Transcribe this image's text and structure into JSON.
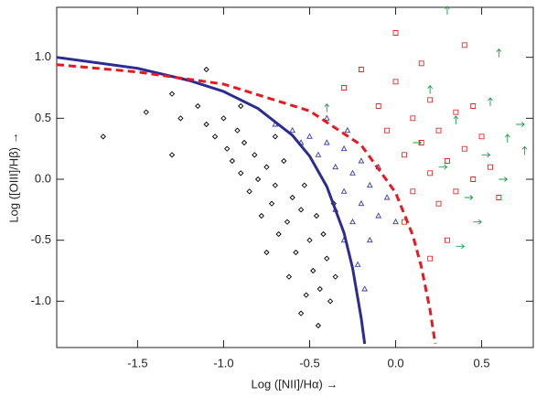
{
  "chart_data": {
    "type": "scatter",
    "x_label": "Log ([NII]/Hα) →",
    "y_label": "Log ([OIII]/Hβ) →",
    "xlim": [
      -1.97,
      0.8
    ],
    "ylim": [
      -1.38,
      1.41
    ],
    "xticks": [
      -1.5,
      {
        "value": -1,
        "label": "-1.0"
      },
      -0.5,
      {
        "value": 0,
        "label": "0.0"
      },
      0.5
    ],
    "yticks": [
      {
        "value": -1,
        "label": "-1.0"
      },
      -0.5,
      {
        "value": 0,
        "label": "0.0"
      },
      0.5,
      {
        "value": 1,
        "label": "1.0"
      }
    ],
    "series": [
      {
        "marker": "diamond",
        "color": "#000000",
        "x": [
          -1.7,
          -1.45,
          -1.3,
          -1.25,
          -1.15,
          -1.1,
          -1.05,
          -1.0,
          -0.98,
          -0.95,
          -0.92,
          -0.9,
          -0.88,
          -0.85,
          -0.82,
          -0.8,
          -0.78,
          -0.75,
          -0.72,
          -0.7,
          -0.68,
          -0.65,
          -0.63,
          -0.6,
          -0.58,
          -0.55,
          -0.53,
          -0.5,
          -0.48,
          -0.46,
          -0.44,
          -0.42,
          -0.4,
          -0.38,
          -0.36,
          -0.35,
          -0.55,
          -0.45,
          -1.1,
          -0.9,
          -0.7,
          -1.3,
          -0.62,
          -0.75,
          -0.52
        ],
        "y": [
          0.35,
          0.55,
          0.7,
          0.5,
          0.6,
          0.45,
          0.35,
          0.5,
          0.25,
          0.15,
          0.4,
          0.05,
          0.3,
          -0.1,
          0.2,
          0.0,
          -0.3,
          0.1,
          -0.2,
          -0.05,
          -0.45,
          0.15,
          -0.35,
          -0.15,
          -0.6,
          -0.25,
          -0.05,
          -0.5,
          -0.75,
          -0.3,
          -0.9,
          -0.45,
          -0.65,
          -1.0,
          -0.2,
          -0.8,
          -1.1,
          -1.2,
          0.9,
          0.6,
          0.35,
          0.2,
          -0.8,
          -0.6,
          -0.95
        ]
      },
      {
        "marker": "triangle",
        "color": "#3a3aa8",
        "x": [
          -0.7,
          -0.6,
          -0.55,
          -0.5,
          -0.45,
          -0.4,
          -0.35,
          -0.3,
          -0.3,
          -0.25,
          -0.25,
          -0.2,
          -0.2,
          -0.15,
          -0.15,
          -0.1,
          -0.1,
          -0.3,
          -0.22,
          -0.05,
          -0.4,
          -0.35,
          -0.28,
          -0.18,
          0.0
        ],
        "y": [
          0.45,
          0.4,
          0.3,
          0.35,
          0.2,
          0.3,
          0.1,
          0.25,
          -0.1,
          0.05,
          -0.35,
          0.15,
          -0.2,
          -0.05,
          -0.5,
          0.1,
          -0.3,
          -0.5,
          -0.7,
          -0.15,
          0.5,
          -0.25,
          0.4,
          -0.9,
          -0.35
        ]
      },
      {
        "marker": "square",
        "color": "#e02a2a",
        "x": [
          -0.3,
          -0.2,
          -0.1,
          -0.05,
          0.0,
          0.05,
          0.1,
          0.1,
          0.15,
          0.2,
          0.2,
          0.25,
          0.25,
          0.3,
          0.35,
          0.35,
          0.4,
          0.45,
          0.5,
          0.55,
          0.6,
          0.15,
          0.4,
          0.05,
          0.3,
          0.0,
          0.45,
          0.2
        ],
        "y": [
          0.75,
          0.9,
          0.6,
          0.4,
          0.8,
          0.2,
          0.5,
          -0.1,
          0.3,
          0.05,
          0.65,
          -0.2,
          0.4,
          0.15,
          0.55,
          -0.1,
          0.25,
          0.0,
          0.35,
          0.1,
          -0.15,
          0.95,
          1.1,
          -0.35,
          -0.5,
          1.2,
          0.6,
          -0.65
        ]
      },
      {
        "marker": "arrow-up",
        "color": "#1f9a4a",
        "x": [
          -0.4,
          0.2,
          0.35,
          0.55,
          0.65,
          0.75,
          0.6,
          0.3
        ],
        "y": [
          0.55,
          0.7,
          0.45,
          0.6,
          0.3,
          0.2,
          1.0,
          1.35
        ]
      },
      {
        "marker": "arrow-right",
        "color": "#1f9a4a",
        "x": [
          0.1,
          0.25,
          0.4,
          0.5,
          0.6,
          0.7,
          0.45,
          0.35
        ],
        "y": [
          0.3,
          0.1,
          -0.15,
          0.2,
          0.0,
          0.45,
          -0.35,
          -0.55
        ]
      }
    ],
    "curves": [
      {
        "color": "#2b2b96",
        "dash": false,
        "x": [
          -1.97,
          -1.5,
          -1.2,
          -1.0,
          -0.8,
          -0.6,
          -0.5,
          -0.4,
          -0.3,
          -0.25,
          -0.2,
          -0.18
        ],
        "y": [
          1.0,
          0.91,
          0.81,
          0.72,
          0.58,
          0.36,
          0.19,
          -0.06,
          -0.44,
          -0.73,
          -1.14,
          -1.35
        ]
      },
      {
        "color": "#e8191e",
        "dash": true,
        "x": [
          -1.97,
          -1.5,
          -1.0,
          -0.5,
          -0.2,
          0.0,
          0.1,
          0.15,
          0.2,
          0.23
        ],
        "y": [
          0.94,
          0.88,
          0.78,
          0.56,
          0.28,
          -0.11,
          -0.46,
          -0.72,
          -1.07,
          -1.35
        ]
      }
    ]
  }
}
